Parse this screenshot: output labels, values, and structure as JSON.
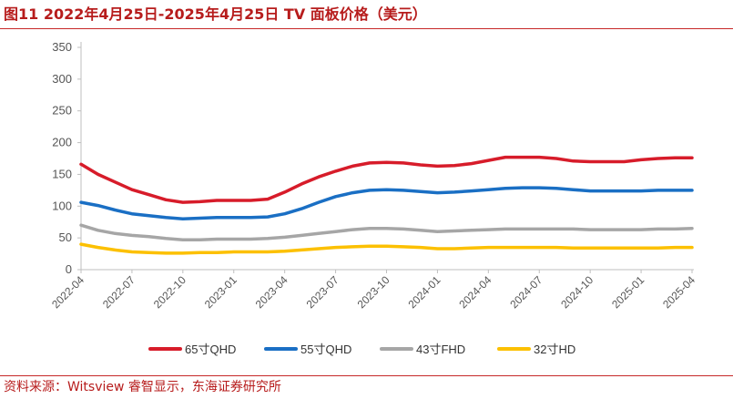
{
  "title": "图11  2022年4月25日-2025年4月25日 TV 面板价格（美元）",
  "source": "资料来源：Witsview 睿智显示，东海证券研究所",
  "chart_data": {
    "type": "line",
    "title": "图11  2022年4月25日-2025年4月25日 TV 面板价格（美元）",
    "xlabel": "",
    "ylabel": "",
    "ylim": [
      0,
      350
    ],
    "yticks": [
      0,
      50,
      100,
      150,
      200,
      250,
      300,
      350
    ],
    "x_tick_labels": [
      "2022-04",
      "2022-07",
      "2022-10",
      "2023-01",
      "2023-04",
      "2023-07",
      "2023-10",
      "2024-01",
      "2024-04",
      "2024-07",
      "2024-10",
      "2025-01",
      "2025-04"
    ],
    "x": [
      "2022-04",
      "2022-05",
      "2022-06",
      "2022-07",
      "2022-08",
      "2022-09",
      "2022-10",
      "2022-11",
      "2022-12",
      "2023-01",
      "2023-02",
      "2023-03",
      "2023-04",
      "2023-05",
      "2023-06",
      "2023-07",
      "2023-08",
      "2023-09",
      "2023-10",
      "2023-11",
      "2023-12",
      "2024-01",
      "2024-02",
      "2024-03",
      "2024-04",
      "2024-05",
      "2024-06",
      "2024-07",
      "2024-08",
      "2024-09",
      "2024-10",
      "2024-11",
      "2024-12",
      "2025-01",
      "2025-02",
      "2025-03",
      "2025-04"
    ],
    "grid": false,
    "legend_position": "bottom",
    "series": [
      {
        "name": "65寸QHD",
        "color": "#d71c2a",
        "values": [
          166,
          150,
          138,
          126,
          118,
          110,
          106,
          107,
          109,
          109,
          109,
          111,
          122,
          135,
          146,
          155,
          163,
          168,
          169,
          168,
          165,
          163,
          164,
          167,
          172,
          177,
          177,
          177,
          175,
          171,
          170,
          170,
          170,
          173,
          175,
          176,
          176
        ]
      },
      {
        "name": "55寸QHD",
        "color": "#1a6fc4",
        "values": [
          106,
          101,
          94,
          88,
          85,
          82,
          80,
          81,
          82,
          82,
          82,
          83,
          88,
          96,
          106,
          115,
          121,
          125,
          126,
          125,
          123,
          121,
          122,
          124,
          126,
          128,
          129,
          129,
          128,
          126,
          124,
          124,
          124,
          124,
          125,
          125,
          125
        ]
      },
      {
        "name": "43寸FHD",
        "color": "#a6a6a6",
        "values": [
          70,
          62,
          57,
          54,
          52,
          49,
          47,
          47,
          48,
          48,
          48,
          49,
          51,
          54,
          57,
          60,
          63,
          65,
          65,
          64,
          62,
          60,
          61,
          62,
          63,
          64,
          64,
          64,
          64,
          64,
          63,
          63,
          63,
          63,
          64,
          64,
          65
        ]
      },
      {
        "name": "32寸HD",
        "color": "#fcc000",
        "values": [
          40,
          35,
          31,
          28,
          27,
          26,
          26,
          27,
          27,
          28,
          28,
          28,
          29,
          31,
          33,
          35,
          36,
          37,
          37,
          36,
          35,
          33,
          33,
          34,
          35,
          35,
          35,
          35,
          35,
          34,
          34,
          34,
          34,
          34,
          34,
          35,
          35
        ]
      }
    ]
  }
}
